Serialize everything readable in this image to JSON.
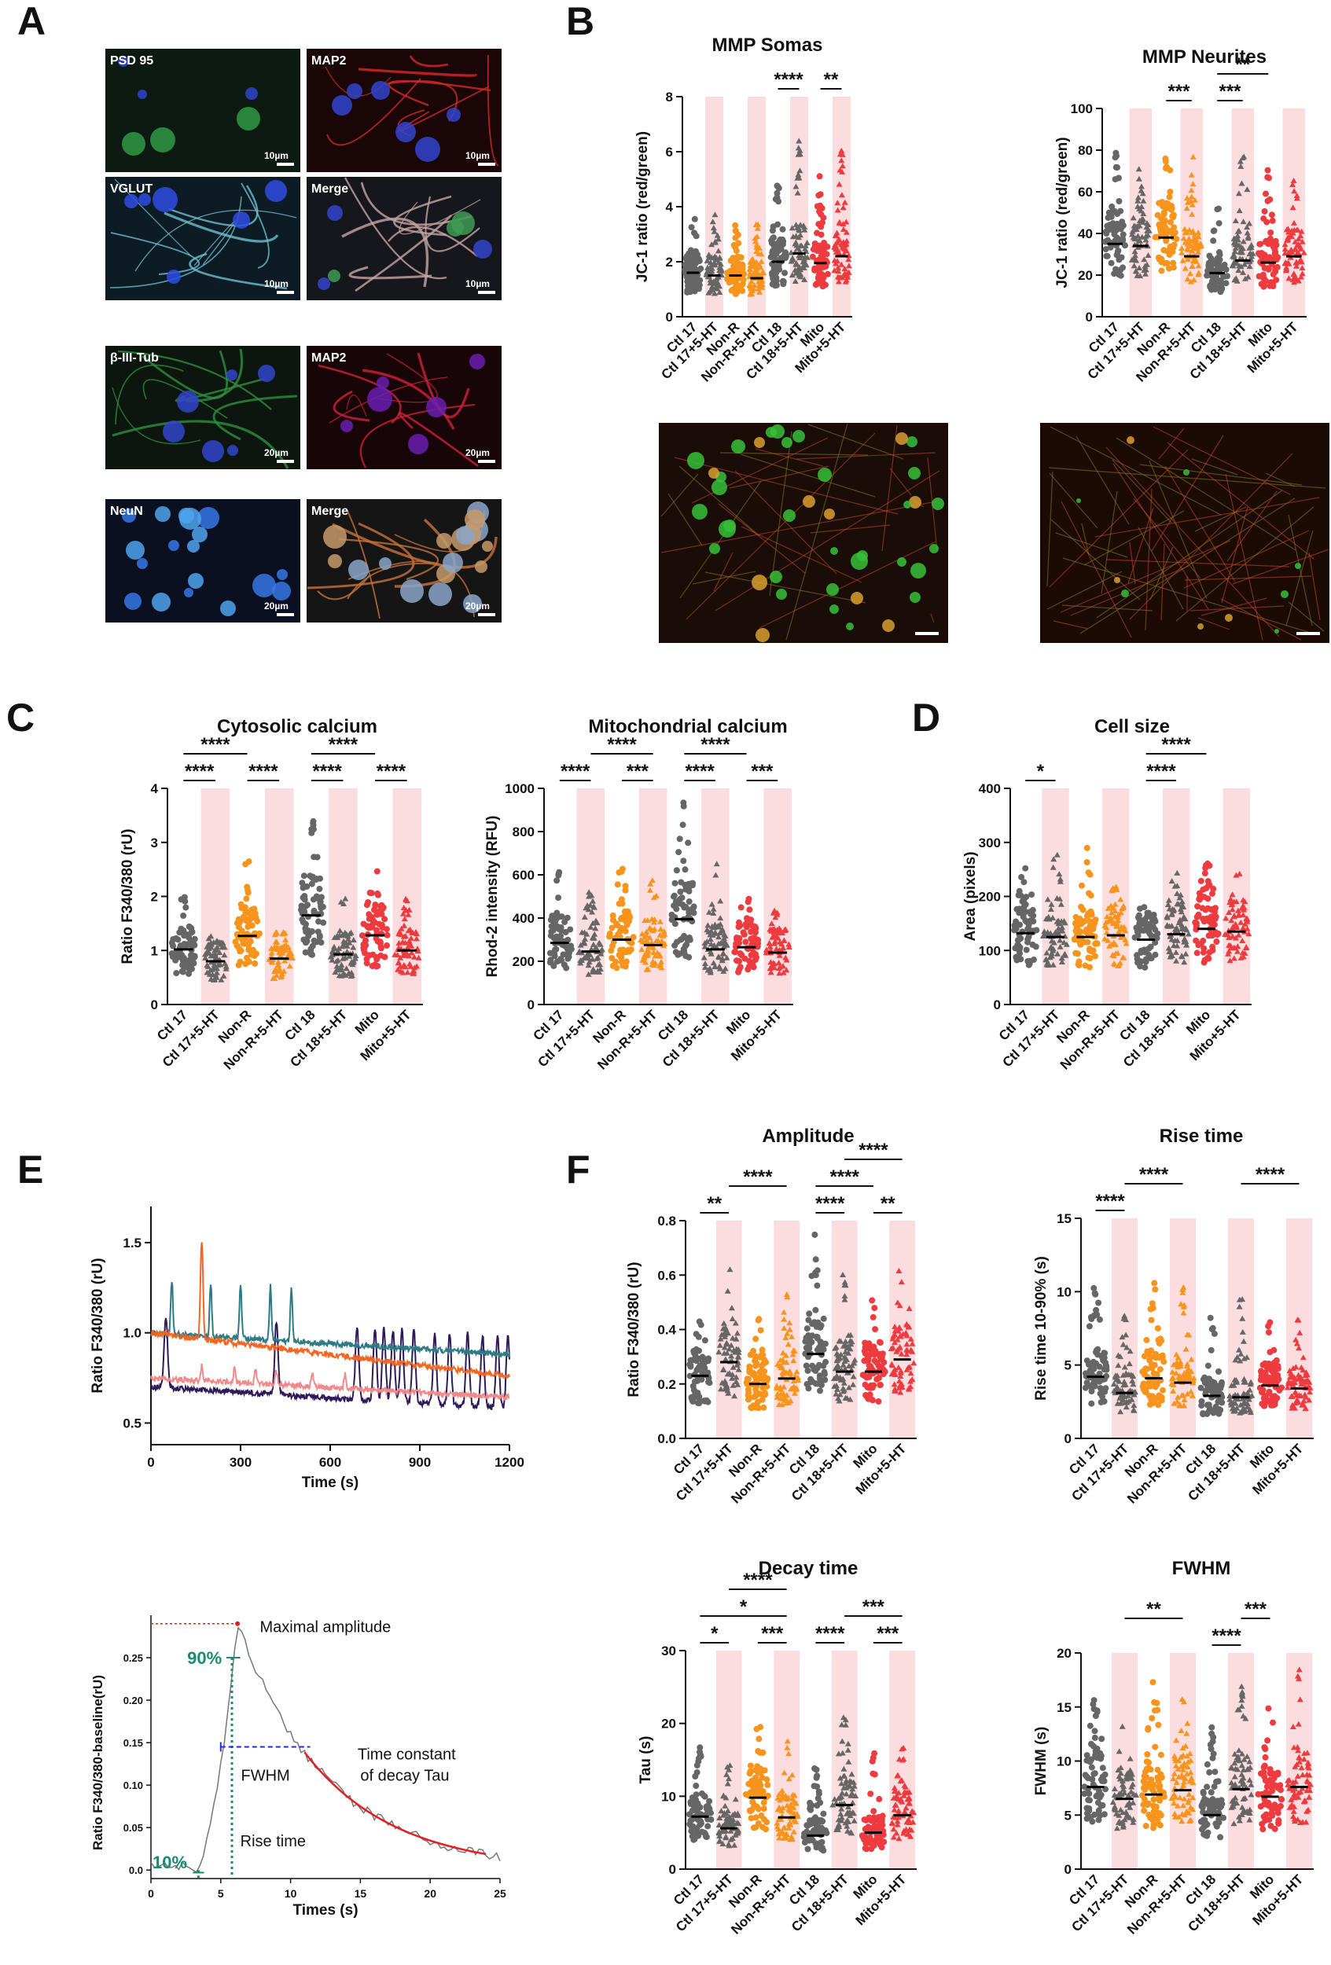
{
  "panel_labels": {
    "A": "A",
    "B": "B",
    "C": "C",
    "D": "D",
    "E": "E",
    "F": "F"
  },
  "colors": {
    "ctl": "#666666",
    "nonr": "#F7941D",
    "mito": "#ED3B3F",
    "shade": "#FBDDDF",
    "orange_trace": "#F26522",
    "teal_trace": "#2E7B86",
    "pink_trace": "#F08A8A",
    "navy_trace": "#2E1A5B",
    "green": "#1A8C6E",
    "red": "#E31E24",
    "blue": "#1E2EE0"
  },
  "micrographs": {
    "panels": [
      {
        "label": "PSD 95",
        "scale": "10µm",
        "tone": "green"
      },
      {
        "label": "MAP2",
        "scale": "10µm",
        "tone": "red"
      },
      {
        "label": "VGLUT",
        "scale": "10µm",
        "tone": "cyan"
      },
      {
        "label": "Merge",
        "scale": "10µm",
        "tone": "merge1"
      },
      {
        "label": "β-III-Tub",
        "scale": "20µm",
        "tone": "green2"
      },
      {
        "label": "MAP2",
        "scale": "20µm",
        "tone": "red2"
      },
      {
        "label": "NeuN",
        "scale": "20µm",
        "tone": "blue"
      },
      {
        "label": "Merge",
        "scale": "20µm",
        "tone": "merge2"
      }
    ],
    "jc1_images": [
      "jc1-somas",
      "jc1-neurites"
    ]
  },
  "categories": [
    "Ctl 17",
    "Ctl 17+5-HT",
    "Non-R",
    "Non-R+5-HT",
    "Ctl 18",
    "Ctl 18+5-HT",
    "Mito",
    "Mito+5-HT"
  ],
  "chart_data": [
    {
      "id": "mmp_somas",
      "type": "scatter",
      "title": "MMP Somas",
      "ylabel": "JC-1 ratio (red/green)",
      "ylim": [
        0,
        8
      ],
      "yticks": [
        0,
        2,
        4,
        6,
        8
      ],
      "means": [
        1.6,
        1.5,
        1.5,
        1.4,
        2.0,
        2.3,
        1.95,
        2.2
      ],
      "max": [
        4.0,
        3.9,
        3.9,
        3.4,
        5.0,
        6.4,
        5.3,
        6.3
      ],
      "brackets": [
        {
          "a": 4,
          "b": 5,
          "level": 0,
          "label": "****"
        },
        {
          "a": 6,
          "b": 7,
          "level": 0,
          "label": "**"
        }
      ]
    },
    {
      "id": "mmp_neurites",
      "type": "scatter",
      "title": "MMP Neurites",
      "ylabel": "JC-1 ratio (red/green)",
      "ylim": [
        0,
        100
      ],
      "yticks": [
        0,
        20,
        40,
        60,
        80,
        100
      ],
      "means": [
        35,
        34,
        38,
        29,
        21,
        27,
        26,
        29
      ],
      "max": [
        80,
        72,
        88,
        78,
        52,
        97,
        72,
        76
      ],
      "brackets": [
        {
          "a": 2,
          "b": 3,
          "level": 0,
          "label": "***"
        },
        {
          "a": 4,
          "b": 5,
          "level": 0,
          "label": "***"
        },
        {
          "a": 4,
          "b": 6,
          "level": 1,
          "label": "**"
        }
      ]
    },
    {
      "id": "cyto_ca",
      "type": "scatter",
      "title": "Cytosolic calcium",
      "ylabel": "Ratio F340/380 (rU)",
      "ylim": [
        0,
        4
      ],
      "yticks": [
        0,
        1,
        2,
        3,
        4
      ],
      "means": [
        1.02,
        0.8,
        1.27,
        0.85,
        1.65,
        0.93,
        1.28,
        1.0
      ],
      "max": [
        2.05,
        1.3,
        2.65,
        1.35,
        3.6,
        2.1,
        2.65,
        1.95
      ],
      "brackets": [
        {
          "a": 0,
          "b": 1,
          "level": 0,
          "label": "****"
        },
        {
          "a": 2,
          "b": 3,
          "level": 0,
          "label": "****"
        },
        {
          "a": 4,
          "b": 5,
          "level": 0,
          "label": "****"
        },
        {
          "a": 6,
          "b": 7,
          "level": 0,
          "label": "****"
        },
        {
          "a": 0,
          "b": 2,
          "level": 1,
          "label": "****"
        },
        {
          "a": 4,
          "b": 6,
          "level": 1,
          "label": "****"
        }
      ]
    },
    {
      "id": "mito_ca",
      "type": "scatter",
      "title": "Mitochondrial calcium",
      "ylabel": "Rhod-2 intensity (RFU)",
      "ylim": [
        0,
        1000
      ],
      "yticks": [
        0,
        200,
        400,
        600,
        800,
        1000
      ],
      "means": [
        285,
        245,
        300,
        275,
        395,
        255,
        265,
        240
      ],
      "max": [
        630,
        540,
        640,
        600,
        980,
        700,
        510,
        470
      ],
      "brackets": [
        {
          "a": 0,
          "b": 1,
          "level": 0,
          "label": "****"
        },
        {
          "a": 2,
          "b": 3,
          "level": 0,
          "label": "***"
        },
        {
          "a": 4,
          "b": 5,
          "level": 0,
          "label": "****"
        },
        {
          "a": 6,
          "b": 7,
          "level": 0,
          "label": "***"
        },
        {
          "a": 1,
          "b": 3,
          "level": 1,
          "label": "****"
        },
        {
          "a": 4,
          "b": 6,
          "level": 1,
          "label": "****"
        }
      ]
    },
    {
      "id": "cell_size",
      "type": "scatter",
      "title": "Cell size",
      "ylabel": "Area (pixels)",
      "ylim": [
        0,
        400
      ],
      "yticks": [
        0,
        100,
        200,
        300,
        400
      ],
      "means": [
        132,
        125,
        125,
        128,
        120,
        130,
        140,
        135
      ],
      "max": [
        265,
        280,
        290,
        220,
        210,
        250,
        265,
        255
      ],
      "brackets": [
        {
          "a": 0,
          "b": 1,
          "level": 0,
          "label": "*"
        },
        {
          "a": 4,
          "b": 5,
          "level": 0,
          "label": "****"
        },
        {
          "a": 4,
          "b": 6,
          "level": 1,
          "label": "****"
        }
      ]
    },
    {
      "id": "amplitude",
      "type": "scatter",
      "title": "Amplitude",
      "ylabel": "Ratio F340/380 (rU)",
      "ylim": [
        0,
        0.8
      ],
      "yticks": [
        0,
        0.2,
        0.4,
        0.6,
        0.8
      ],
      "ytick_labels": [
        "0.0",
        "0.2",
        "0.4",
        "0.6",
        "0.8"
      ],
      "means": [
        0.23,
        0.28,
        0.2,
        0.22,
        0.31,
        0.245,
        0.245,
        0.29
      ],
      "max": [
        0.5,
        0.63,
        0.45,
        0.55,
        0.76,
        0.6,
        0.55,
        0.72
      ],
      "brackets": [
        {
          "a": 0,
          "b": 1,
          "level": 0,
          "label": "**"
        },
        {
          "a": 4,
          "b": 5,
          "level": 0,
          "label": "****"
        },
        {
          "a": 6,
          "b": 7,
          "level": 0,
          "label": "**"
        },
        {
          "a": 1,
          "b": 3,
          "level": 1,
          "label": "****"
        },
        {
          "a": 4,
          "b": 6,
          "level": 1,
          "label": "****"
        },
        {
          "a": 5,
          "b": 7,
          "level": 2,
          "label": "****"
        }
      ]
    },
    {
      "id": "rise_time",
      "type": "scatter",
      "title": "Rise time",
      "ylabel": "Rise time 10-90% (s)",
      "ylim": [
        0,
        15
      ],
      "yticks": [
        0,
        5,
        10,
        15
      ],
      "means": [
        4.2,
        3.1,
        4.1,
        3.8,
        2.9,
        2.8,
        3.6,
        3.4
      ],
      "max": [
        11,
        9,
        10.8,
        10.5,
        9,
        9.5,
        8,
        8.7
      ],
      "brackets": [
        {
          "a": 0,
          "b": 1,
          "level": 0,
          "label": "****"
        },
        {
          "a": 1,
          "b": 3,
          "level": 1,
          "label": "****"
        },
        {
          "a": 5,
          "b": 7,
          "level": 1,
          "label": "****"
        }
      ]
    },
    {
      "id": "decay_time",
      "type": "scatter",
      "title": "Decay time",
      "ylabel": "Tau (s)",
      "ylim": [
        0,
        30
      ],
      "yticks": [
        0,
        10,
        20,
        30
      ],
      "means": [
        7.2,
        5.6,
        9.8,
        7.1,
        4.6,
        8.8,
        5.0,
        7.4
      ],
      "max": [
        17,
        15,
        20,
        17.5,
        14,
        23,
        16,
        17
      ],
      "brackets": [
        {
          "a": 0,
          "b": 1,
          "level": 0,
          "label": "*"
        },
        {
          "a": 2,
          "b": 3,
          "level": 0,
          "label": "***"
        },
        {
          "a": 4,
          "b": 5,
          "level": 0,
          "label": "****"
        },
        {
          "a": 6,
          "b": 7,
          "level": 0,
          "label": "***"
        },
        {
          "a": 0,
          "b": 3,
          "level": 1,
          "label": "*"
        },
        {
          "a": 1,
          "b": 3,
          "level": 2,
          "label": "****"
        },
        {
          "a": 5,
          "b": 7,
          "level": 1,
          "label": "***"
        }
      ]
    },
    {
      "id": "fwhm",
      "type": "scatter",
      "title": "FWHM",
      "ylabel": "FWHM (s)",
      "ylim": [
        0,
        20
      ],
      "yticks": [
        0,
        5,
        10,
        15,
        20
      ],
      "means": [
        7.6,
        6.5,
        6.9,
        7.3,
        5.0,
        7.4,
        6.7,
        7.6
      ],
      "max": [
        16,
        14.5,
        18.5,
        16,
        13.5,
        17,
        15,
        18.5
      ],
      "brackets": [
        {
          "a": 4,
          "b": 5,
          "level": 0,
          "label": "****"
        },
        {
          "a": 1,
          "b": 3,
          "level": 1,
          "label": "**"
        },
        {
          "a": 5,
          "b": 6,
          "level": 1,
          "label": "***"
        }
      ]
    },
    {
      "id": "traces",
      "type": "line",
      "xlabel": "Time (s)",
      "ylabel": "Ratio F340/380 (rU)",
      "xlim": [
        0,
        1200
      ],
      "ylim": [
        0.38,
        1.7
      ],
      "xticks": [
        0,
        300,
        600,
        900,
        1200
      ],
      "yticks": [
        0.5,
        1.0,
        1.5
      ],
      "ytick_labels": [
        "0.5",
        "1.0",
        "1.5"
      ]
    },
    {
      "id": "kinetics",
      "type": "line",
      "xlabel": "Times (s)",
      "ylabel": "Ratio F340/380-baseline(rU)",
      "xlim": [
        0,
        25
      ],
      "ylim": [
        -0.01,
        0.3
      ],
      "xticks": [
        0,
        5,
        10,
        15,
        20,
        25
      ],
      "yticks": [
        0,
        0.05,
        0.1,
        0.15,
        0.2,
        0.25
      ],
      "ytick_labels": [
        "0.0",
        "0.05",
        "0.10",
        "0.15",
        "0.20",
        "0.25"
      ],
      "annotations": {
        "max": "Maximal amplitude",
        "p90": "90%",
        "p10": "10%",
        "fwhm": "FWHM",
        "rise": "Rise time",
        "tau1": "Time constant",
        "tau2": "of decay Tau"
      }
    }
  ]
}
